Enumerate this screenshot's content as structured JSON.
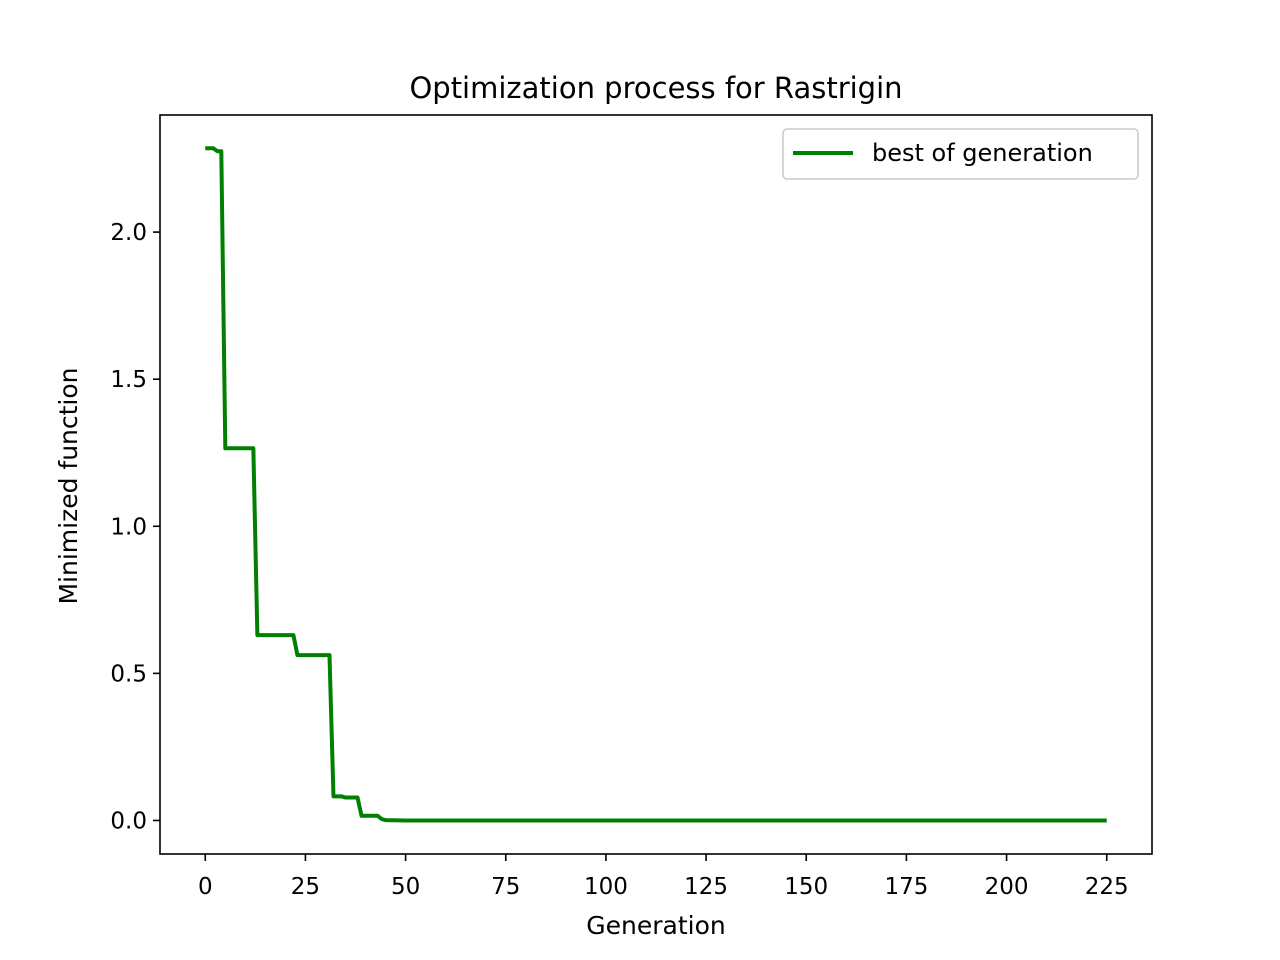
{
  "chart_data": {
    "type": "line",
    "title": "Optimization process for Rastrigin",
    "xlabel": "Generation",
    "ylabel": "Minimized function",
    "xlim": [
      -11.3,
      236.3
    ],
    "ylim": [
      -0.114,
      2.398
    ],
    "xticks": [
      0,
      25,
      50,
      75,
      100,
      125,
      150,
      175,
      200,
      225
    ],
    "xtick_labels": [
      "0",
      "25",
      "50",
      "75",
      "100",
      "125",
      "150",
      "175",
      "200",
      "225"
    ],
    "yticks": [
      0.0,
      0.5,
      1.0,
      1.5,
      2.0
    ],
    "ytick_labels": [
      "0.0",
      "0.5",
      "1.0",
      "1.5",
      "2.0"
    ],
    "grid": false,
    "legend": {
      "position": "upper-right"
    },
    "series": [
      {
        "name": "best of generation",
        "color": "#008000",
        "x": [
          0,
          1,
          2,
          3,
          4,
          5,
          6,
          7,
          8,
          9,
          10,
          11,
          12,
          13,
          14,
          15,
          16,
          17,
          18,
          19,
          20,
          21,
          22,
          23,
          24,
          25,
          26,
          27,
          28,
          29,
          30,
          31,
          32,
          33,
          34,
          35,
          36,
          37,
          38,
          39,
          40,
          41,
          42,
          43,
          44,
          45,
          50,
          100,
          150,
          200,
          225
        ],
        "y": [
          2.285,
          2.285,
          2.285,
          2.275,
          2.275,
          1.265,
          1.265,
          1.265,
          1.265,
          1.265,
          1.265,
          1.265,
          1.265,
          0.63,
          0.63,
          0.63,
          0.63,
          0.63,
          0.63,
          0.63,
          0.63,
          0.63,
          0.63,
          0.562,
          0.562,
          0.562,
          0.562,
          0.562,
          0.562,
          0.562,
          0.562,
          0.562,
          0.082,
          0.082,
          0.082,
          0.078,
          0.078,
          0.078,
          0.078,
          0.016,
          0.016,
          0.016,
          0.016,
          0.016,
          0.005,
          0.001,
          0.0,
          0.0,
          0.0,
          0.0,
          0.0
        ]
      }
    ]
  }
}
